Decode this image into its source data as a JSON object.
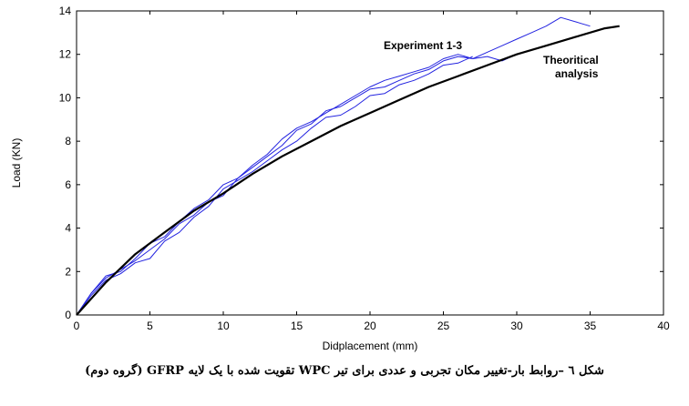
{
  "chart_data": {
    "type": "line",
    "xlabel": "Didplacement (mm)",
    "ylabel": "Load (KN)",
    "xlim": [
      0,
      40
    ],
    "ylim": [
      0,
      14
    ],
    "x_ticks": [
      "0",
      "5",
      "10",
      "15",
      "20",
      "25",
      "30",
      "35",
      "40"
    ],
    "y_ticks": [
      "0",
      "2",
      "4",
      "6",
      "8",
      "10",
      "12",
      "14"
    ],
    "grid": false,
    "annotations": [
      {
        "text": "Experiment 1-3"
      },
      {
        "text": "Theoritical"
      },
      {
        "text": "analysis"
      }
    ],
    "colors": {
      "experiment": "#2323e0",
      "theory": "#000000"
    },
    "series": [
      {
        "color": "#2323e0",
        "x": [
          0,
          1,
          2,
          3,
          4,
          5,
          6,
          7,
          8,
          9,
          10,
          11,
          12,
          13,
          14,
          15,
          16,
          17,
          18,
          19,
          20,
          21,
          22,
          23,
          24,
          25,
          26,
          27,
          28,
          29,
          30,
          31,
          32,
          33,
          34,
          35
        ],
        "y": [
          0,
          1.0,
          1.8,
          2.0,
          2.6,
          3.3,
          3.6,
          4.3,
          4.9,
          5.3,
          6.0,
          6.3,
          6.8,
          7.3,
          7.8,
          8.5,
          8.8,
          9.4,
          9.6,
          10.0,
          10.4,
          10.5,
          10.8,
          11.1,
          11.3,
          11.7,
          11.9,
          11.8,
          12.1,
          12.4,
          12.7,
          13.0,
          13.3,
          13.7,
          13.5,
          13.3
        ]
      },
      {
        "color": "#2323e0",
        "x": [
          0,
          1,
          2,
          3,
          4,
          5,
          6,
          7,
          8,
          9,
          10,
          11,
          12,
          13,
          14,
          15,
          16,
          17,
          18,
          19,
          20,
          21,
          22,
          23,
          24,
          25,
          26,
          27,
          28,
          29,
          30
        ],
        "y": [
          0,
          1.0,
          1.7,
          2.1,
          2.5,
          3.0,
          3.5,
          4.2,
          4.6,
          5.2,
          5.5,
          6.3,
          6.9,
          7.4,
          8.1,
          8.6,
          8.9,
          9.3,
          9.7,
          10.1,
          10.5,
          10.8,
          11.0,
          11.2,
          11.4,
          11.8,
          12.0,
          11.8,
          11.9,
          11.7,
          12.0
        ]
      },
      {
        "color": "#2323e0",
        "x": [
          0,
          1,
          2,
          3,
          4,
          5,
          6,
          7,
          8,
          9,
          10,
          11,
          12,
          13,
          14,
          15,
          16,
          17,
          18,
          19,
          20,
          21,
          22,
          23,
          24,
          25,
          26,
          27
        ],
        "y": [
          0,
          0.9,
          1.6,
          1.9,
          2.4,
          2.6,
          3.4,
          3.8,
          4.5,
          5.0,
          5.8,
          6.2,
          6.6,
          7.1,
          7.6,
          8.0,
          8.6,
          9.1,
          9.2,
          9.6,
          10.1,
          10.2,
          10.6,
          10.8,
          11.1,
          11.5,
          11.6,
          11.9
        ]
      },
      {
        "color": "#000000",
        "x": [
          0,
          2,
          4,
          6,
          8,
          10,
          12,
          14,
          16,
          18,
          20,
          22,
          24,
          26,
          28,
          30,
          32,
          34,
          36,
          37
        ],
        "y": [
          0,
          1.5,
          2.8,
          3.8,
          4.8,
          5.6,
          6.5,
          7.3,
          8.0,
          8.7,
          9.3,
          9.9,
          10.5,
          11.0,
          11.5,
          12.0,
          12.4,
          12.8,
          13.2,
          13.3
        ]
      }
    ]
  },
  "caption": "شکل ٦ –روابط بار-تغییر مکان تجربی و عددی برای تیر WPC تقویت شده با یک لایه GFRP (گروه دوم)"
}
